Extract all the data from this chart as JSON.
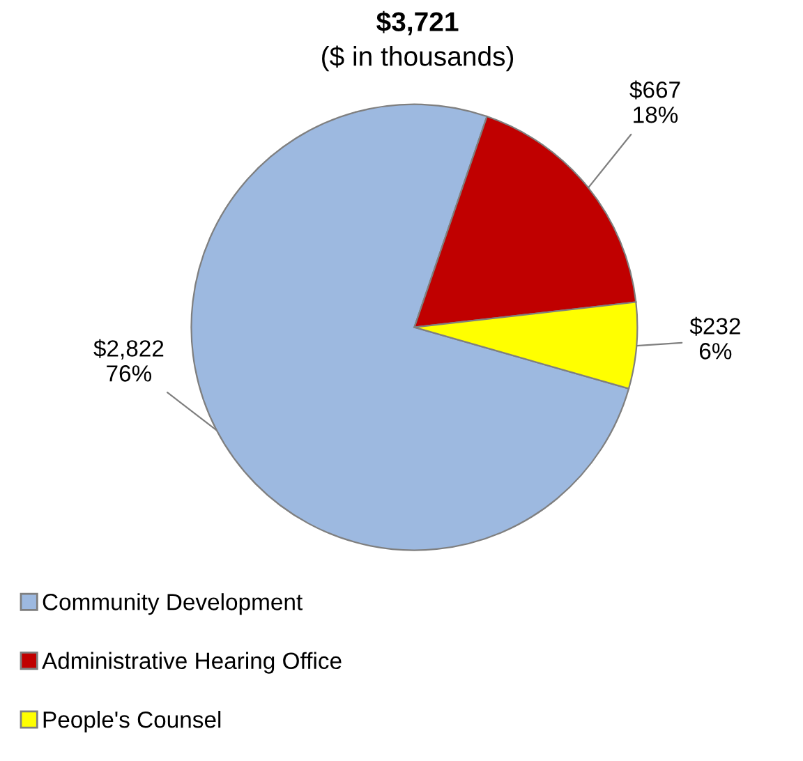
{
  "chart_data": {
    "type": "pie",
    "title": "$3,721",
    "subtitle": "($ in thousands)",
    "categories": [
      "Community Development",
      "Administrative Hearing Office",
      "People's Counsel"
    ],
    "values": [
      2822,
      667,
      232
    ],
    "colors": [
      "#9db9e0",
      "#c00000",
      "#ffff00"
    ],
    "value_labels": [
      "$2,822\n76%",
      "$667\n18%",
      "$232\n6%"
    ],
    "legend": "bottom left"
  }
}
